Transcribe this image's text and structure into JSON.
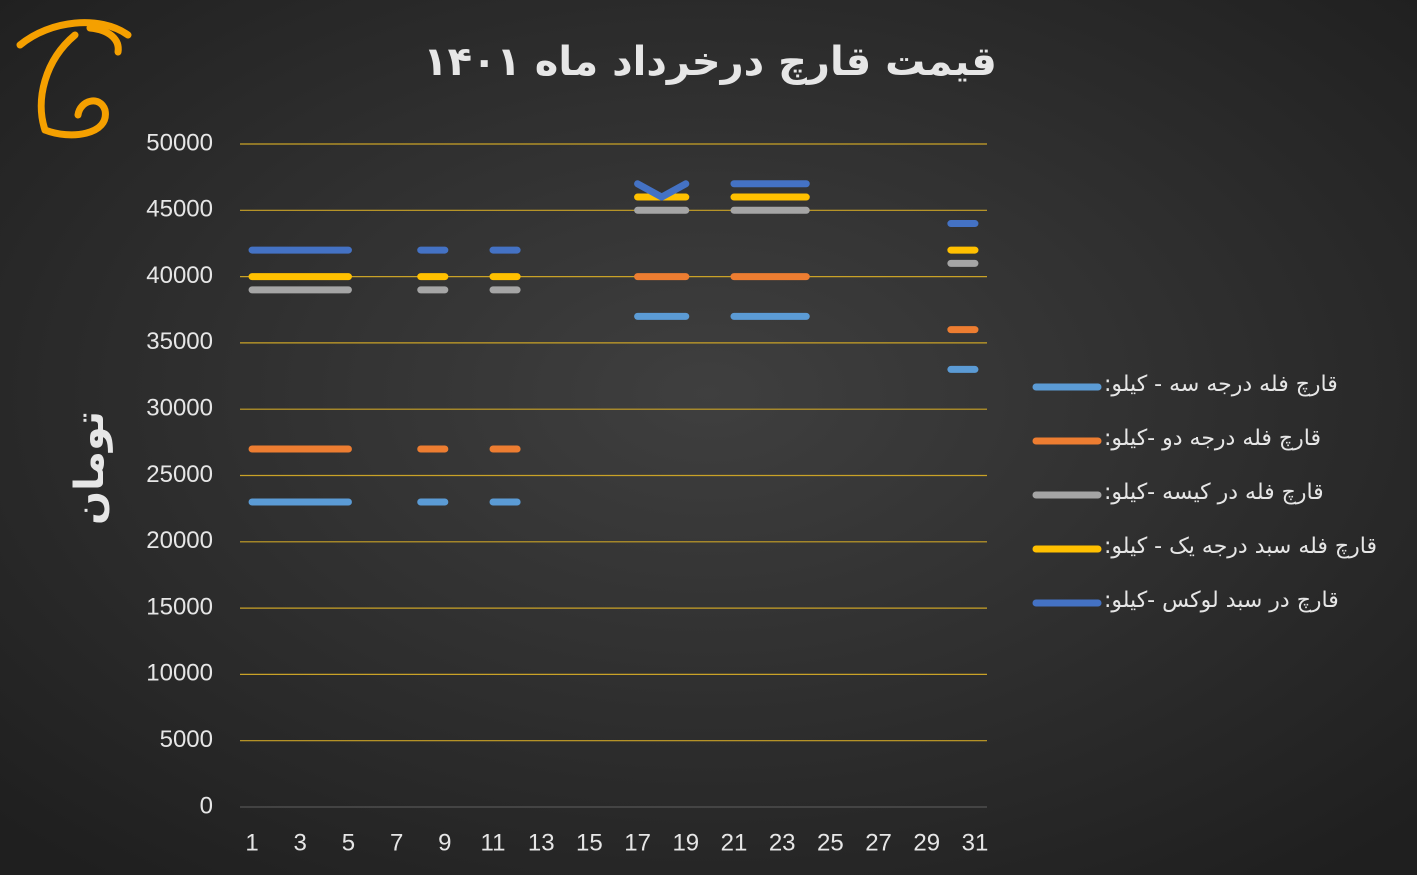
{
  "chart_data": {
    "type": "line",
    "title": "قیمت قارچ درخرداد ماه ۱۴۰۱",
    "y_label": "تومان",
    "x": [
      1,
      2,
      3,
      4,
      5,
      6,
      7,
      8,
      9,
      10,
      11,
      12,
      13,
      14,
      15,
      16,
      17,
      18,
      19,
      20,
      21,
      22,
      23,
      24,
      25,
      26,
      27,
      28,
      29,
      30,
      31
    ],
    "xlim": [
      0.5,
      31.5
    ],
    "xticks": [
      1,
      3,
      5,
      7,
      9,
      11,
      13,
      15,
      17,
      19,
      21,
      23,
      25,
      27,
      29,
      31
    ],
    "ylim": [
      0,
      50000
    ],
    "yticks": [
      0,
      5000,
      10000,
      15000,
      20000,
      25000,
      30000,
      35000,
      40000,
      45000,
      50000
    ],
    "grid": true,
    "legend": "right",
    "series": [
      {
        "name": "قارچ فله درجه سه - کیلو:",
        "color": "#5b9bd5",
        "values": [
          23000,
          23000,
          23000,
          23000,
          23000,
          null,
          null,
          23000,
          23000,
          null,
          23000,
          23000,
          null,
          null,
          null,
          null,
          37000,
          37000,
          37000,
          null,
          37000,
          37000,
          37000,
          37000,
          null,
          null,
          null,
          null,
          null,
          33000,
          33000
        ]
      },
      {
        "name": "قارچ فله درجه دو -کیلو:",
        "color": "#ed7d31",
        "values": [
          27000,
          27000,
          27000,
          27000,
          27000,
          null,
          null,
          27000,
          27000,
          null,
          27000,
          27000,
          null,
          null,
          null,
          null,
          40000,
          40000,
          40000,
          null,
          40000,
          40000,
          40000,
          40000,
          null,
          null,
          null,
          null,
          null,
          36000,
          36000
        ]
      },
      {
        "name": "قارچ فله در کیسه -کیلو:",
        "color": "#a5a5a5",
        "values": [
          39000,
          39000,
          39000,
          39000,
          39000,
          null,
          null,
          39000,
          39000,
          null,
          39000,
          39000,
          null,
          null,
          null,
          null,
          45000,
          45000,
          45000,
          null,
          45000,
          45000,
          45000,
          45000,
          null,
          null,
          null,
          null,
          null,
          41000,
          41000
        ]
      },
      {
        "name": "قارچ فله سبد درجه یک - کیلو:",
        "color": "#ffc000",
        "values": [
          40000,
          40000,
          40000,
          40000,
          40000,
          null,
          null,
          40000,
          40000,
          null,
          40000,
          40000,
          null,
          null,
          null,
          null,
          46000,
          46000,
          46000,
          null,
          46000,
          46000,
          46000,
          46000,
          null,
          null,
          null,
          null,
          null,
          42000,
          42000
        ]
      },
      {
        "name": "قارچ در سبد لوکس -کیلو:",
        "color": "#4472c4",
        "values": [
          42000,
          42000,
          42000,
          42000,
          42000,
          null,
          null,
          42000,
          42000,
          null,
          42000,
          42000,
          null,
          null,
          null,
          null,
          47000,
          46000,
          47000,
          null,
          47000,
          47000,
          47000,
          47000,
          null,
          null,
          null,
          null,
          null,
          44000,
          44000
        ]
      }
    ]
  }
}
